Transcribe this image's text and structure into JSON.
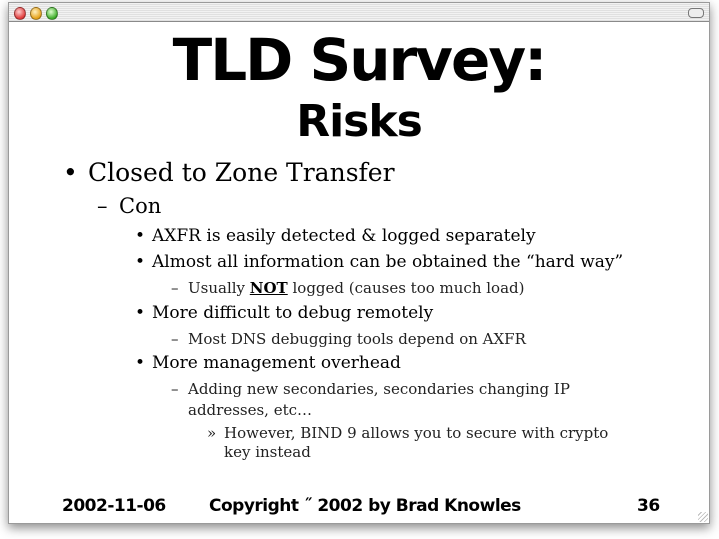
{
  "window": {
    "icons": {
      "close": "close-button",
      "minimize": "minimize-button",
      "zoom": "zoom-button",
      "toolbar": "toolbar-toggle-button"
    }
  },
  "slide": {
    "title": "TLD Survey:",
    "subtitle": "Risks",
    "bullets": {
      "b1": "Closed to Zone Transfer",
      "b1_1": "Con",
      "b1_1_1": "AXFR is easily detected & logged separately",
      "b1_1_2": "Almost all information can be obtained the “hard way”",
      "b1_1_2_1_pre": "Usually ",
      "b1_1_2_1_em": "NOT",
      "b1_1_2_1_post": " logged (causes too much load)",
      "b1_1_3": "More difficult to debug remotely",
      "b1_1_3_1": "Most DNS debugging tools depend on AXFR",
      "b1_1_4": "More management overhead",
      "b1_1_4_1a": "Adding new secondaries, secondaries changing IP",
      "b1_1_4_1b": "addresses, etc…",
      "b1_1_4_1_1a": "However, BIND 9 allows you to secure with crypto",
      "b1_1_4_1_1b": "key instead"
    },
    "markers": {
      "l1": "•",
      "l2": "–",
      "l3": "•",
      "l4": "–",
      "l5": "»"
    },
    "footer": {
      "date": "2002-11-06",
      "copyright": "Copyright ˝ 2002 by Brad Knowles",
      "page": "36"
    }
  }
}
